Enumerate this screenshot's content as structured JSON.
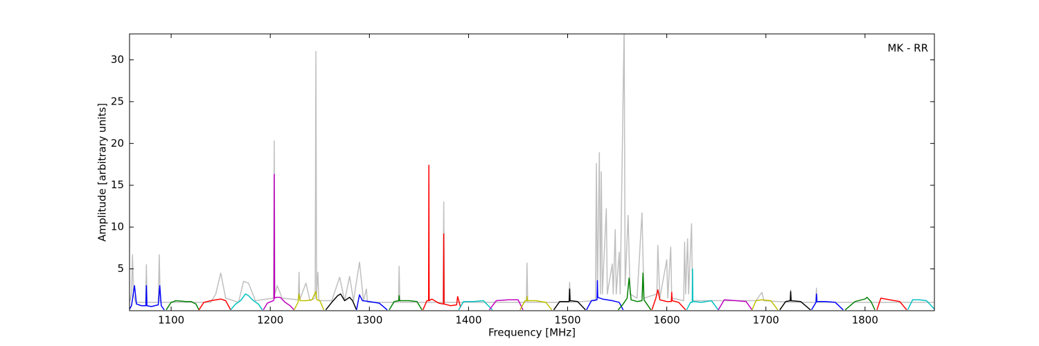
{
  "chart_data": {
    "type": "line",
    "xlabel": "Frequency [MHz]",
    "ylabel": "Amplitude [arbitrary units]",
    "annotation": "MK - RR",
    "xlim": [
      1058,
      1870
    ],
    "ylim": [
      0,
      33.1
    ],
    "xticks": [
      1100,
      1200,
      1300,
      1400,
      1500,
      1600,
      1700,
      1800
    ],
    "yticks": [
      5,
      10,
      15,
      20,
      25,
      30
    ],
    "series": [
      {
        "color": "#bfbfbf",
        "x": [
          1058,
          1060,
          1061,
          1062,
          1064,
          1074.3,
          1075,
          1075.7,
          1087,
          1088,
          1089,
          1140,
          1145,
          1150,
          1155,
          1168,
          1173,
          1178,
          1185,
          1203.3,
          1204,
          1204.7,
          1207,
          1212,
          1228.3,
          1229,
          1229.7,
          1236,
          1240,
          1245.3,
          1246,
          1246.7,
          1248,
          1249,
          1262,
          1270,
          1275,
          1280,
          1284,
          1290,
          1294,
          1297,
          1298,
          1329.3,
          1330,
          1330.7,
          1374.3,
          1375,
          1375.7,
          1458.3,
          1459,
          1459.7,
          1501.3,
          1502,
          1502.7,
          1528,
          1529,
          1530,
          1532,
          1533,
          1534,
          1535,
          1539,
          1540,
          1545,
          1546,
          1548,
          1549,
          1552,
          1553,
          1557,
          1558,
          1561,
          1563,
          1570,
          1575,
          1577,
          1590,
          1591,
          1593,
          1600,
          1601,
          1604,
          1605,
          1617,
          1618,
          1619,
          1621,
          1622,
          1625,
          1626,
          1690,
          1696,
          1698,
          1724.3,
          1725,
          1725.7,
          1750.3,
          1751,
          1751.7,
          1870
        ],
        "values": [
          1,
          2,
          6.7,
          2,
          1,
          1,
          5.5,
          1,
          1,
          6.7,
          1,
          1,
          2,
          4.5,
          1.5,
          1,
          3.5,
          3.3,
          1.2,
          1.5,
          20.3,
          2,
          3,
          1.5,
          1.3,
          4.6,
          1.3,
          3.3,
          1.2,
          1.5,
          31,
          2,
          4.6,
          1.2,
          1.2,
          4,
          1.2,
          4.1,
          1.2,
          5.8,
          1.2,
          2.6,
          1,
          1,
          5.3,
          1,
          1,
          13,
          1,
          1,
          5.7,
          1,
          1,
          3.4,
          1,
          1.2,
          17.6,
          2,
          18.9,
          2,
          16.6,
          2,
          12.2,
          2,
          5.6,
          2,
          9.7,
          2,
          7,
          2,
          34,
          3,
          11.4,
          2,
          1.5,
          11.7,
          1.5,
          2,
          7.8,
          1.5,
          6.1,
          1.5,
          7.6,
          1.5,
          1.2,
          8.2,
          2,
          8.6,
          2,
          10.4,
          1.2,
          1.2,
          2.2,
          1.2,
          1,
          2.5,
          1,
          1,
          2.7,
          1,
          1
        ]
      },
      {
        "color": "#0000ff",
        "x": [
          1058,
          1060,
          1063,
          1065,
          1070,
          1074.5,
          1075,
          1075.5,
          1080,
          1087,
          1088.5,
          1090,
          1093
        ],
        "values": [
          0.2,
          0.6,
          3,
          0.8,
          0.6,
          0.6,
          3,
          0.6,
          0.5,
          0.7,
          3,
          0.6,
          0.1
        ]
      },
      {
        "color": "#008000",
        "x": [
          1095,
          1100,
          1105,
          1115,
          1120,
          1125,
          1128
        ],
        "values": [
          0.1,
          1,
          1.2,
          1.1,
          1.1,
          0.8,
          0.1
        ]
      },
      {
        "color": "#ff0000",
        "x": [
          1128,
          1133,
          1140,
          1150,
          1155,
          1160
        ],
        "values": [
          0.1,
          1,
          1.2,
          1.4,
          1.2,
          0.1
        ]
      },
      {
        "color": "#00bfbf",
        "x": [
          1160,
          1165,
          1170,
          1175,
          1178,
          1182,
          1188,
          1192
        ],
        "values": [
          0.1,
          0.8,
          1.2,
          2,
          1.8,
          1.3,
          0.8,
          0.1
        ]
      },
      {
        "color": "#bf00bf",
        "x": [
          1193,
          1197,
          1203,
          1203.7,
          1204,
          1204.3,
          1206,
          1210,
          1215,
          1220,
          1224
        ],
        "values": [
          0.1,
          0.9,
          1.2,
          1.3,
          16.3,
          1.5,
          1.6,
          1.6,
          1,
          0.6,
          0.1
        ]
      },
      {
        "color": "#bfbf00",
        "x": [
          1224,
          1228,
          1229,
          1230,
          1236,
          1242,
          1246,
          1247,
          1250,
          1254
        ],
        "values": [
          0.1,
          1,
          2,
          1.2,
          1.2,
          1.3,
          2.3,
          1.3,
          1.2,
          0.1
        ]
      },
      {
        "color": "#000000",
        "x": [
          1256,
          1262,
          1268,
          1271,
          1275,
          1280,
          1283,
          1287
        ],
        "values": [
          0.1,
          1,
          1.8,
          2,
          1.2,
          1.6,
          1.2,
          0.1
        ]
      },
      {
        "color": "#0000ff",
        "x": [
          1287,
          1290,
          1293,
          1300,
          1310,
          1318
        ],
        "values": [
          0.1,
          1.9,
          1.2,
          1.1,
          0.9,
          0.1
        ]
      },
      {
        "color": "#008000",
        "x": [
          1320,
          1325,
          1329.6,
          1330,
          1330.4,
          1340,
          1348,
          1353
        ],
        "values": [
          0.1,
          1.1,
          1.2,
          1.8,
          1.2,
          1.2,
          1.1,
          0.1
        ]
      },
      {
        "color": "#ff0000",
        "x": [
          1354,
          1358,
          1359.7,
          1360,
          1360.3,
          1363,
          1370,
          1374.7,
          1375,
          1375.3,
          1382,
          1388,
          1389,
          1392
        ],
        "values": [
          0.1,
          1.2,
          1.2,
          17.4,
          1.2,
          1.4,
          0.9,
          0.8,
          9.2,
          0.8,
          0.6,
          0.7,
          1.7,
          0.4
        ]
      },
      {
        "color": "#00bfbf",
        "x": [
          1390,
          1395,
          1405,
          1415,
          1424
        ],
        "values": [
          0.1,
          1.1,
          1.1,
          1.2,
          0.1
        ]
      },
      {
        "color": "#bf00bf",
        "x": [
          1421,
          1428,
          1440,
          1450,
          1455
        ],
        "values": [
          0.1,
          1.2,
          1.3,
          1.3,
          0.1
        ]
      },
      {
        "color": "#bfbf00",
        "x": [
          1452,
          1457,
          1458.7,
          1459,
          1459.3,
          1468,
          1478,
          1484
        ],
        "values": [
          0.1,
          1.2,
          1.2,
          1.7,
          1.2,
          1.2,
          1,
          0.1
        ]
      },
      {
        "color": "#000000",
        "x": [
          1486,
          1492,
          1501.6,
          1502,
          1502.4,
          1510,
          1518
        ],
        "values": [
          0.1,
          1.1,
          1.1,
          2.6,
          1.2,
          1.1,
          0.1
        ]
      },
      {
        "color": "#0000ff",
        "x": [
          1519,
          1524,
          1529.6,
          1530,
          1530.4,
          1535,
          1545,
          1552,
          1556
        ],
        "values": [
          0.1,
          1.2,
          1.3,
          3.6,
          1.6,
          1.4,
          1.2,
          1,
          0.1
        ]
      },
      {
        "color": "#008000",
        "x": [
          1551,
          1556,
          1560,
          1562,
          1564,
          1570,
          1575,
          1576,
          1577,
          1584
        ],
        "values": [
          0.1,
          0.8,
          1.5,
          3.9,
          1.3,
          1.1,
          1.2,
          4.5,
          1.3,
          0.1
        ]
      },
      {
        "color": "#ff0000",
        "x": [
          1585,
          1589,
          1591,
          1593,
          1600,
          1604.6,
          1605,
          1605.4,
          1612,
          1619
        ],
        "values": [
          0.1,
          1.5,
          2.5,
          1.3,
          1.1,
          1.1,
          2.2,
          1.2,
          1,
          0.1
        ]
      },
      {
        "color": "#00bfbf",
        "x": [
          1620,
          1624,
          1625.7,
          1626,
          1626.3,
          1635,
          1645,
          1652
        ],
        "values": [
          0.1,
          1,
          1,
          5,
          1.1,
          1,
          1.2,
          0.1
        ]
      },
      {
        "color": "#bf00bf",
        "x": [
          1652,
          1658,
          1670,
          1680,
          1686
        ],
        "values": [
          0.1,
          1.3,
          1.2,
          1.1,
          0.1
        ]
      },
      {
        "color": "#bfbf00",
        "x": [
          1686,
          1690,
          1696,
          1705,
          1712
        ],
        "values": [
          0.1,
          1.2,
          1.3,
          1.2,
          0.1
        ]
      },
      {
        "color": "#000000",
        "x": [
          1714,
          1720,
          1724.6,
          1725,
          1725.4,
          1735,
          1745
        ],
        "values": [
          0.1,
          1.1,
          1.2,
          2.3,
          1.2,
          1.1,
          0.1
        ]
      },
      {
        "color": "#0000ff",
        "x": [
          1746,
          1750.6,
          1751,
          1751.4,
          1760,
          1770,
          1778
        ],
        "values": [
          0.1,
          1,
          2,
          1.1,
          1.1,
          1,
          0.1
        ]
      },
      {
        "color": "#008000",
        "x": [
          1780,
          1790,
          1800,
          1802,
          1806,
          1810
        ],
        "values": [
          0.1,
          1.1,
          1.4,
          1.6,
          1.1,
          0.1
        ]
      },
      {
        "color": "#ff0000",
        "x": [
          1812,
          1816,
          1825,
          1835,
          1842
        ],
        "values": [
          0.1,
          1.5,
          1.3,
          1.1,
          0.1
        ]
      },
      {
        "color": "#00bfbf",
        "x": [
          1843,
          1848,
          1855,
          1862,
          1870
        ],
        "values": [
          0.1,
          1.3,
          1.3,
          1.2,
          0.2
        ]
      }
    ]
  }
}
